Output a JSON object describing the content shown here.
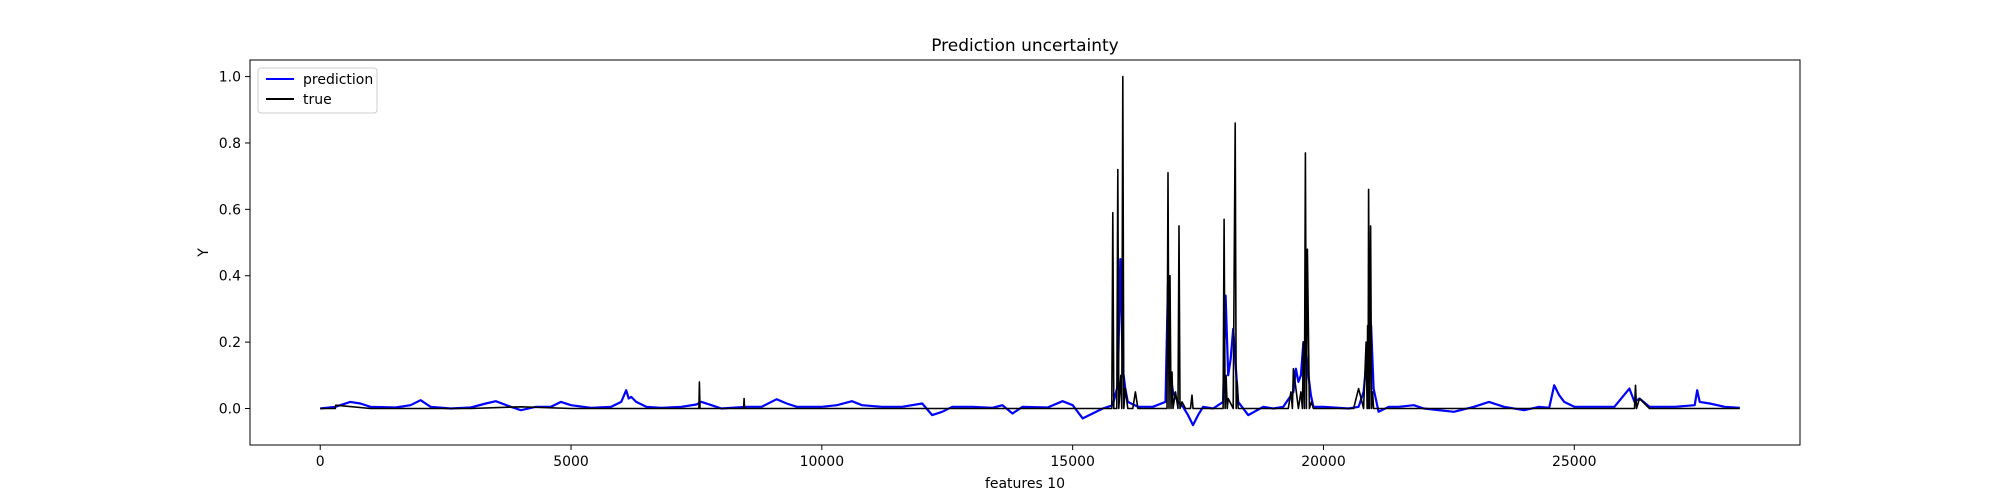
{
  "chart_data": {
    "type": "line",
    "title": "Prediction uncertainty",
    "xlabel": "features 10",
    "ylabel": "Y",
    "xlim": [
      -1400,
      29500
    ],
    "ylim": [
      -0.11,
      1.05
    ],
    "xticks": [
      0,
      5000,
      10000,
      15000,
      20000,
      25000
    ],
    "yticks": [
      0.0,
      0.2,
      0.4,
      0.6,
      0.8,
      1.0
    ],
    "ytick_labels": [
      "0.0",
      "0.2",
      "0.4",
      "0.6",
      "0.8",
      "1.0"
    ],
    "legend": {
      "position": "top-left",
      "entries": [
        "prediction",
        "true"
      ]
    },
    "grid": false,
    "series": [
      {
        "name": "prediction",
        "color": "#0000ff",
        "x": [
          0,
          300,
          600,
          800,
          1000,
          1500,
          1800,
          2000,
          2200,
          2600,
          3000,
          3300,
          3500,
          3800,
          4000,
          4300,
          4600,
          4800,
          5000,
          5400,
          5800,
          6000,
          6100,
          6150,
          6200,
          6300,
          6500,
          6800,
          7200,
          7500,
          7600,
          7800,
          8000,
          8500,
          8800,
          9100,
          9300,
          9500,
          10000,
          10300,
          10600,
          10800,
          11200,
          11600,
          12000,
          12200,
          12400,
          12600,
          13000,
          13400,
          13600,
          13800,
          14000,
          14500,
          14800,
          15000,
          15200,
          15600,
          15800,
          15900,
          15950,
          16000,
          16050,
          16100,
          16300,
          16600,
          16850,
          16900,
          16950,
          17000,
          17100,
          17200,
          17300,
          17400,
          17500,
          17600,
          17800,
          18000,
          18050,
          18100,
          18150,
          18200,
          18300,
          18500,
          18800,
          19000,
          19200,
          19400,
          19450,
          19500,
          19550,
          19600,
          19650,
          19700,
          19750,
          19800,
          20000,
          20500,
          20700,
          20800,
          20850,
          20900,
          20950,
          21000,
          21100,
          21300,
          21500,
          21800,
          22000,
          22300,
          22600,
          23000,
          23300,
          23600,
          24000,
          24300,
          24500,
          24600,
          24700,
          24800,
          25000,
          25400,
          25800,
          26100,
          26200,
          26300,
          26500,
          27000,
          27400,
          27450,
          27500,
          27700,
          28000,
          28300
        ],
        "y": [
          0.0,
          0.005,
          0.02,
          0.015,
          0.005,
          0.003,
          0.01,
          0.025,
          0.005,
          0.0,
          0.003,
          0.015,
          0.022,
          0.005,
          -0.005,
          0.005,
          0.005,
          0.02,
          0.01,
          0.002,
          0.005,
          0.02,
          0.055,
          0.03,
          0.035,
          0.02,
          0.005,
          0.002,
          0.005,
          0.012,
          0.02,
          0.01,
          0.0,
          0.005,
          0.005,
          0.028,
          0.015,
          0.005,
          0.005,
          0.01,
          0.022,
          0.01,
          0.005,
          0.005,
          0.015,
          -0.02,
          -0.01,
          0.005,
          0.005,
          0.002,
          0.01,
          -0.015,
          0.005,
          0.003,
          0.022,
          0.01,
          -0.03,
          0.0,
          0.01,
          0.07,
          0.45,
          0.12,
          0.06,
          0.02,
          0.005,
          0.005,
          0.02,
          0.38,
          0.1,
          0.05,
          0.02,
          0.005,
          -0.02,
          -0.05,
          -0.02,
          0.005,
          0.0,
          0.02,
          0.34,
          0.1,
          0.15,
          0.24,
          0.02,
          -0.02,
          0.005,
          0.0,
          0.005,
          0.05,
          0.12,
          0.08,
          0.1,
          0.2,
          0.18,
          0.1,
          0.04,
          0.005,
          0.005,
          0.0,
          0.005,
          0.05,
          0.13,
          0.2,
          0.25,
          0.06,
          -0.01,
          0.005,
          0.005,
          0.01,
          0.0,
          -0.005,
          -0.01,
          0.005,
          0.02,
          0.005,
          -0.005,
          0.005,
          0.002,
          0.07,
          0.04,
          0.02,
          0.005,
          0.005,
          0.005,
          0.06,
          0.02,
          0.03,
          0.005,
          0.005,
          0.01,
          0.055,
          0.02,
          0.015,
          0.005,
          0.002
        ]
      },
      {
        "name": "true",
        "color": "#000000",
        "x": [
          0,
          300,
          310,
          1000,
          2200,
          3000,
          4000,
          5000,
          6000,
          7000,
          7550,
          7560,
          7570,
          8000,
          8440,
          8450,
          8460,
          9000,
          10000,
          11000,
          12000,
          13000,
          14000,
          15000,
          15600,
          15780,
          15800,
          15820,
          15880,
          15900,
          15920,
          15960,
          15980,
          16000,
          16020,
          16050,
          16100,
          16200,
          16250,
          16300,
          16800,
          16880,
          16900,
          16920,
          16940,
          16960,
          16980,
          17000,
          17050,
          17100,
          17120,
          17140,
          17180,
          17250,
          17350,
          17380,
          17400,
          17500,
          17900,
          18000,
          18020,
          18040,
          18060,
          18080,
          18100,
          18200,
          18240,
          18260,
          18280,
          18300,
          18500,
          19000,
          19300,
          19350,
          19380,
          19400,
          19500,
          19550,
          19580,
          19600,
          19620,
          19640,
          19660,
          19680,
          19720,
          19760,
          19800,
          20000,
          20600,
          20700,
          20800,
          20850,
          20870,
          20880,
          20890,
          20900,
          20920,
          20940,
          20960,
          20980,
          21000,
          21100,
          21500,
          22000,
          23000,
          24000,
          25000,
          26000,
          26200,
          26220,
          26240,
          26300,
          26500,
          27000,
          28000,
          28300
        ],
        "y": [
          0.0,
          0.0,
          0.01,
          0.0,
          0.0,
          0.0,
          0.005,
          0.0,
          0.0,
          0.0,
          0.0,
          0.08,
          0.0,
          0.0,
          0.0,
          0.03,
          0.0,
          0.0,
          0.0,
          0.0,
          0.0,
          0.0,
          0.0,
          0.0,
          0.0,
          0.0,
          0.59,
          0.0,
          0.0,
          0.72,
          0.0,
          0.1,
          0.0,
          1.0,
          0.0,
          0.06,
          0.0,
          0.0,
          0.05,
          0.0,
          0.0,
          0.0,
          0.71,
          0.0,
          0.4,
          0.0,
          0.11,
          0.0,
          0.05,
          0.0,
          0.55,
          0.0,
          0.02,
          0.0,
          0.0,
          0.04,
          0.0,
          0.0,
          0.0,
          0.0,
          0.57,
          0.0,
          0.1,
          0.0,
          0.03,
          0.0,
          0.86,
          0.0,
          0.08,
          0.0,
          0.0,
          0.0,
          0.0,
          0.05,
          0.0,
          0.12,
          0.0,
          0.05,
          0.0,
          0.2,
          0.0,
          0.77,
          0.0,
          0.48,
          0.0,
          0.02,
          0.0,
          0.0,
          0.0,
          0.06,
          0.0,
          0.2,
          0.0,
          0.25,
          0.0,
          0.66,
          0.0,
          0.55,
          0.0,
          0.05,
          0.0,
          0.0,
          0.0,
          0.0,
          0.0,
          0.0,
          0.0,
          0.0,
          0.0,
          0.07,
          0.0,
          0.03,
          0.0,
          0.0,
          0.0,
          0.0
        ]
      }
    ]
  }
}
